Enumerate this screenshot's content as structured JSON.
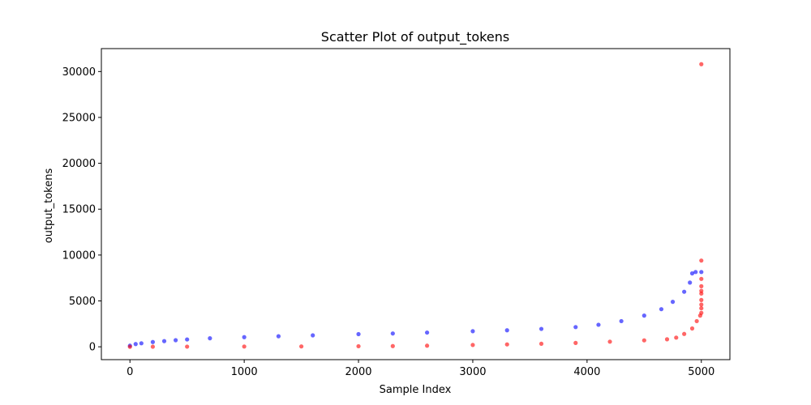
{
  "chart_data": {
    "type": "scatter",
    "title": "Scatter Plot of output_tokens",
    "xlabel": "Sample Index",
    "ylabel": "output_tokens",
    "xlim": [
      -250,
      5250
    ],
    "ylim": [
      -1400,
      32500
    ],
    "xticks": [
      0,
      1000,
      2000,
      3000,
      4000,
      5000
    ],
    "yticks": [
      0,
      5000,
      10000,
      15000,
      20000,
      25000,
      30000
    ],
    "grid": false,
    "legend": "none",
    "series": [
      {
        "color": "#0000ff",
        "points": [
          [
            0,
            120
          ],
          [
            50,
            300
          ],
          [
            100,
            380
          ],
          [
            200,
            520
          ],
          [
            300,
            620
          ],
          [
            400,
            720
          ],
          [
            500,
            800
          ],
          [
            700,
            930
          ],
          [
            1000,
            1050
          ],
          [
            1300,
            1150
          ],
          [
            1600,
            1250
          ],
          [
            2000,
            1380
          ],
          [
            2300,
            1450
          ],
          [
            2600,
            1550
          ],
          [
            3000,
            1700
          ],
          [
            3300,
            1800
          ],
          [
            3600,
            1950
          ],
          [
            3900,
            2150
          ],
          [
            4100,
            2400
          ],
          [
            4300,
            2800
          ],
          [
            4500,
            3400
          ],
          [
            4650,
            4100
          ],
          [
            4750,
            4900
          ],
          [
            4850,
            6000
          ],
          [
            4900,
            7000
          ],
          [
            4920,
            8000
          ],
          [
            4950,
            8150
          ],
          [
            5000,
            8150
          ]
        ]
      },
      {
        "color": "#ff0000",
        "points": [
          [
            0,
            0
          ],
          [
            200,
            10
          ],
          [
            500,
            20
          ],
          [
            1000,
            30
          ],
          [
            1500,
            40
          ],
          [
            2000,
            60
          ],
          [
            2300,
            80
          ],
          [
            2600,
            120
          ],
          [
            3000,
            200
          ],
          [
            3300,
            260
          ],
          [
            3600,
            330
          ],
          [
            3900,
            420
          ],
          [
            4200,
            560
          ],
          [
            4500,
            700
          ],
          [
            4700,
            820
          ],
          [
            4780,
            1000
          ],
          [
            4850,
            1400
          ],
          [
            4920,
            2000
          ],
          [
            4960,
            2800
          ],
          [
            4990,
            3400
          ],
          [
            5000,
            3700
          ],
          [
            5000,
            4200
          ],
          [
            5000,
            4600
          ],
          [
            5000,
            5100
          ],
          [
            5000,
            5800
          ],
          [
            5000,
            6100
          ],
          [
            5000,
            6600
          ],
          [
            5000,
            7400
          ],
          [
            5000,
            9400
          ],
          [
            5000,
            30800
          ]
        ]
      }
    ]
  }
}
